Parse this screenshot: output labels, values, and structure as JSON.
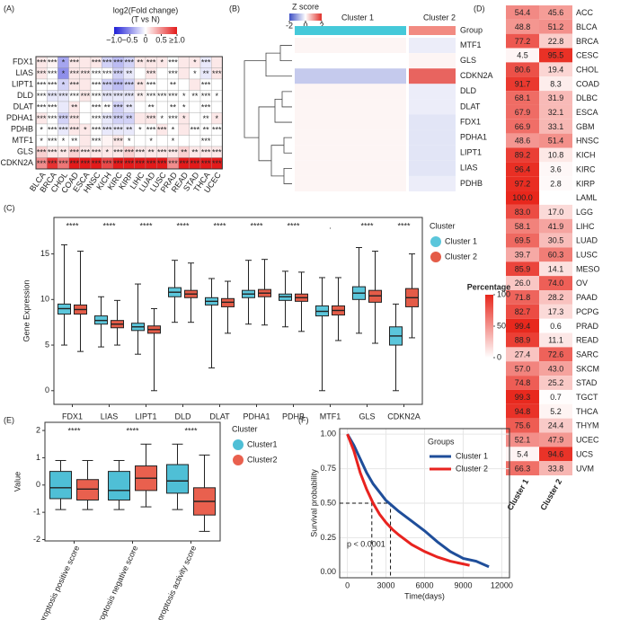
{
  "chart_data": [
    {
      "type": "heatmap",
      "label": "(A)",
      "title": "log2(Fold change)",
      "subtitle": "(T vs N)",
      "clim": [
        -1,
        1
      ],
      "colors": [
        "#1f1fd6",
        "#ffffff",
        "#e31a1a"
      ],
      "colorbar_ticks": [
        {
          "value": -1,
          "label": "−1.0"
        },
        {
          "value": -0.5,
          "label": "−0.5"
        },
        0,
        0.5,
        {
          "value": 1,
          "label": "≥1.0"
        }
      ],
      "rows": [
        "FDX1",
        "LIAS",
        "LIPT1",
        "DLD",
        "DLAT",
        "PDHA1",
        "PDHB",
        "MTF1",
        "GLS",
        "CDKN2A"
      ],
      "columns": [
        "BLCA",
        "BRCA",
        "CHOL",
        "COAD",
        "ESCA",
        "HNSC",
        "KICH",
        "KIRC",
        "KIRP",
        "LIHC",
        "LUAD",
        "LUSC",
        "PRAD",
        "READ",
        "STAD",
        "THCA",
        "UCEC"
      ],
      "values": [
        [
          0.1,
          0.05,
          -0.4,
          0.1,
          0.1,
          0.1,
          -0.2,
          -0.3,
          -0.2,
          0.1,
          0.1,
          0.1,
          0,
          0.1,
          0.1,
          -0.1,
          0.1
        ],
        [
          0.1,
          0,
          -0.5,
          0.1,
          0.1,
          0,
          0,
          -0.2,
          -0.1,
          0,
          0.1,
          0,
          0,
          0.1,
          0,
          -0.1,
          0.1
        ],
        [
          0,
          0,
          -0.2,
          0.1,
          0.1,
          0,
          -0.2,
          -0.3,
          -0.2,
          0.1,
          0,
          0,
          0,
          0,
          0.1,
          0,
          0
        ],
        [
          0,
          -0.1,
          -0.1,
          0,
          0.1,
          0,
          -0.1,
          -0.1,
          -0.1,
          0.05,
          0,
          0,
          0,
          0,
          0,
          0,
          0
        ],
        [
          0,
          0,
          -0.1,
          0.1,
          0,
          0,
          0,
          -0.2,
          -0.1,
          0,
          0,
          0,
          0,
          0,
          0,
          0,
          0
        ],
        [
          0.1,
          0,
          -0.2,
          0.1,
          0,
          0,
          -0.1,
          -0.2,
          -0.2,
          0.1,
          0.1,
          0,
          0,
          0.1,
          0,
          0,
          0.1
        ],
        [
          0,
          0,
          -0.1,
          0.1,
          0.1,
          0,
          -0.1,
          -0.1,
          -0.1,
          0,
          0,
          0.1,
          0,
          0.1,
          0,
          0,
          0
        ],
        [
          0,
          0,
          0,
          0,
          0.1,
          0,
          0.05,
          0.1,
          0,
          0,
          0,
          0,
          0,
          0,
          0,
          0,
          0
        ],
        [
          0.2,
          0.1,
          0.1,
          0.2,
          0.1,
          0.1,
          0.1,
          0.1,
          0.2,
          0.1,
          0.1,
          0.1,
          0.1,
          0.2,
          0.1,
          0.1,
          0.1
        ],
        [
          0.5,
          0.9,
          0.6,
          1.0,
          1.0,
          1.0,
          0.8,
          1.0,
          1.0,
          1.0,
          1.0,
          1.0,
          0.5,
          1.0,
          1.0,
          1.0,
          1.0
        ]
      ],
      "labels": [
        [
          "***",
          "***",
          "*",
          "***",
          null,
          "***",
          "***",
          "***",
          "***",
          "**",
          "***",
          "*",
          "***",
          null,
          "*",
          "***",
          null
        ],
        [
          "***",
          "***",
          "*",
          "***",
          "***",
          "***",
          "***",
          "***",
          "**",
          null,
          "***",
          null,
          "***",
          null,
          "*",
          "**",
          "***"
        ],
        [
          "***",
          "***",
          "*",
          "***",
          null,
          "***",
          "***",
          "***",
          "***",
          "**",
          "***",
          null,
          "**",
          null,
          null,
          "***",
          null
        ],
        [
          "***",
          "***",
          "***",
          "***",
          "***",
          "***",
          "***",
          "***",
          "***",
          "**",
          "***",
          "***",
          "***",
          "*",
          "**",
          "***",
          "*"
        ],
        [
          "***",
          "***",
          null,
          "**",
          null,
          "***",
          "**",
          "***",
          "**",
          null,
          "**",
          null,
          "**",
          "*",
          null,
          "***",
          null
        ],
        [
          "***",
          "***",
          "***",
          "***",
          null,
          "***",
          "***",
          "***",
          "**",
          null,
          "***",
          "*",
          "***",
          "*",
          null,
          "**",
          "*"
        ],
        [
          "*",
          "***",
          "***",
          "***",
          "*",
          "***",
          "***",
          "***",
          "**",
          "*",
          "***",
          "***",
          "*",
          null,
          "***",
          "**",
          "***"
        ],
        [
          "*",
          "***",
          "*",
          "**",
          null,
          "***",
          null,
          "***",
          "*",
          null,
          "*",
          null,
          "*",
          null,
          null,
          "***",
          null
        ],
        [
          "***",
          "***",
          "**",
          "***",
          "***",
          "***",
          "*",
          "***",
          "***",
          "***",
          "**",
          "***",
          "***",
          "**",
          "**",
          "***",
          "***"
        ],
        [
          "***",
          "***",
          "***",
          "***",
          "***",
          "***",
          "***",
          "***",
          "***",
          "***",
          "***",
          "***",
          "***",
          "***",
          "***",
          "***",
          "***"
        ]
      ]
    },
    {
      "type": "heatmap",
      "label": "(B)",
      "title": "Z score",
      "clim": [
        -2,
        2
      ],
      "colors": [
        "#3d4fc4",
        "#ffffff",
        "#e0302a"
      ],
      "colorbar_ticks": [
        -2,
        0,
        2
      ],
      "group_label": "Group",
      "groups": [
        {
          "name": "Cluster 1",
          "color": "#45c9d9"
        },
        {
          "name": "Cluster 2",
          "color": "#f28b82"
        }
      ],
      "rows": [
        "MTF1",
        "GLS",
        "CDKN2A",
        "DLD",
        "DLAT",
        "FDX1",
        "PDHA1",
        "LIPT1",
        "LIAS",
        "PDHB"
      ],
      "values": [
        [
          0.1,
          -0.2
        ],
        [
          0,
          0.1
        ],
        [
          -0.6,
          1.5
        ],
        [
          0.1,
          -0.2
        ],
        [
          0.1,
          -0.2
        ],
        [
          0.1,
          -0.3
        ],
        [
          0.1,
          -0.3
        ],
        [
          0.1,
          -0.3
        ],
        [
          0.1,
          -0.3
        ],
        [
          0.1,
          -0.2
        ]
      ]
    },
    {
      "type": "box",
      "label": "(C)",
      "y_label": "Gene Expression",
      "legend_title": "Cluster",
      "categories": [
        "FDX1",
        "LIAS",
        "LIPT1",
        "DLD",
        "DLAT",
        "PDHA1",
        "PDHB",
        "MTF1",
        "GLS",
        "CDKN2A"
      ],
      "annotations": [
        "****",
        "****",
        "****",
        "****",
        "****",
        "****",
        "****",
        ".",
        "****",
        "****"
      ],
      "ylim": [
        -1.5,
        19
      ],
      "yticks": [
        0,
        5,
        10,
        15
      ],
      "series": [
        {
          "name": "Cluster 1",
          "color": "#5bc6db",
          "values": [
            [
              5,
              8.4,
              9,
              9.5,
              16
            ],
            [
              4.8,
              7.3,
              7.7,
              8.2,
              10.3
            ],
            [
              4,
              6.6,
              7,
              7.4,
              11.7
            ],
            [
              7.5,
              10.3,
              10.8,
              11.3,
              14.3
            ],
            [
              2.5,
              9.4,
              9.8,
              10.2,
              12.3
            ],
            [
              7.3,
              10.2,
              10.6,
              11,
              14.3
            ],
            [
              7,
              9.9,
              10.3,
              10.6,
              13.1
            ],
            [
              0,
              8.2,
              8.7,
              9.3,
              12.4
            ],
            [
              6.3,
              10,
              10.7,
              11.4,
              15.7
            ],
            [
              0,
              5,
              6,
              7,
              9.5
            ]
          ]
        },
        {
          "name": "Cluster 2",
          "color": "#e45c48",
          "values": [
            [
              4.3,
              8.4,
              8.9,
              9.4,
              15.3
            ],
            [
              5,
              6.9,
              7.3,
              7.7,
              9.9
            ],
            [
              0,
              6.3,
              6.7,
              7.1,
              9
            ],
            [
              7.5,
              10.2,
              10.6,
              11,
              14
            ],
            [
              6.3,
              9.2,
              9.7,
              10.1,
              12
            ],
            [
              7.2,
              10.3,
              10.7,
              11.1,
              14.4
            ],
            [
              6.5,
              9.8,
              10.2,
              10.6,
              13
            ],
            [
              5.5,
              8.3,
              8.8,
              9.3,
              12.4
            ],
            [
              5.2,
              9.7,
              10.4,
              11,
              15.3
            ],
            [
              5.8,
              9.2,
              10.2,
              11.2,
              15
            ]
          ]
        }
      ]
    },
    {
      "type": "heatmap",
      "label": "(D)",
      "title": "Percentage",
      "clim": [
        0,
        100
      ],
      "colors": [
        "#ffffff",
        "#e8271c"
      ],
      "colorbar_ticks": [
        0,
        50,
        100
      ],
      "rows": [
        "ACC",
        "BLCA",
        "BRCA",
        "CESC",
        "CHOL",
        "COAD",
        "DLBC",
        "ESCA",
        "GBM",
        "HNSC",
        "KICH",
        "KIRC",
        "KIRP",
        "LAML",
        "LGG",
        "LIHC",
        "LUAD",
        "LUSC",
        "MESO",
        "OV",
        "PAAD",
        "PCPG",
        "PRAD",
        "READ",
        "SARC",
        "SKCM",
        "STAD",
        "TGCT",
        "THCA",
        "THYM",
        "UCEC",
        "UCS",
        "UVM"
      ],
      "series": [
        {
          "name": "Cluster 1",
          "values": [
            54.4,
            48.8,
            77.2,
            4.5,
            80.6,
            91.7,
            68.1,
            67.9,
            66.9,
            48.6,
            89.2,
            96.4,
            97.2,
            100,
            83,
            58.1,
            69.5,
            39.7,
            85.9,
            26,
            71.8,
            82.7,
            99.4,
            88.9,
            27.4,
            57,
            74.8,
            99.3,
            94.8,
            75.6,
            52.1,
            5.4,
            66.3
          ],
          "value_labels": [
            "54.4",
            "48.8",
            "77.2",
            "4.5",
            "80.6",
            "91.7",
            "68.1",
            "67.9",
            "66.9",
            "48.6",
            "89.2",
            "96.4",
            "97.2",
            "100.0",
            "83.0",
            "58.1",
            "69.5",
            "39.7",
            "85.9",
            "26.0",
            "71.8",
            "82.7",
            "99.4",
            "88.9",
            "27.4",
            "57.0",
            "74.8",
            "99.3",
            "94.8",
            "75.6",
            "52.1",
            "5.4",
            "66.3"
          ]
        },
        {
          "name": "Cluster 2",
          "values": [
            45.6,
            51.2,
            22.8,
            95.5,
            19.4,
            8.3,
            31.9,
            32.1,
            33.1,
            51.4,
            10.8,
            3.6,
            2.8,
            0,
            17,
            41.9,
            30.5,
            60.3,
            14.1,
            74,
            28.2,
            17.3,
            0.6,
            11.1,
            72.6,
            43,
            25.2,
            0.7,
            5.2,
            24.4,
            47.9,
            94.6,
            33.8
          ],
          "value_labels": [
            "45.6",
            "51.2",
            "22.8",
            "95.5",
            "19.4",
            "8.3",
            "31.9",
            "32.1",
            "33.1",
            "51.4",
            "10.8",
            "3.6",
            "2.8",
            null,
            "17.0",
            "41.9",
            "30.5",
            "60.3",
            "14.1",
            "74.0",
            "28.2",
            "17.3",
            "0.6",
            "11.1",
            "72.6",
            "43.0",
            "25.2",
            "0.7",
            "5.2",
            "24.4",
            "47.9",
            "94.6",
            "33.8"
          ]
        }
      ]
    },
    {
      "type": "box",
      "label": "(E)",
      "y_label": "Value",
      "legend_title": "Cluster",
      "categories": [
        "Cuproptosis positive score",
        "Cuproptosis negative score",
        "Cuproptosis activity score"
      ],
      "annotations": [
        "****",
        "****",
        "****"
      ],
      "ylim": [
        -2.05,
        2.3
      ],
      "yticks": [
        -2,
        -1,
        0,
        1,
        2
      ],
      "series": [
        {
          "name": "Cluster1",
          "color": "#4fbfd6",
          "values": [
            [
              -0.9,
              -0.5,
              -0.1,
              0.5,
              0.9
            ],
            [
              -0.9,
              -0.55,
              -0.2,
              0.5,
              0.9
            ],
            [
              -0.9,
              -0.3,
              0.15,
              0.75,
              1.5
            ]
          ]
        },
        {
          "name": "Cluster2",
          "color": "#e9604e",
          "values": [
            [
              -0.9,
              -0.55,
              -0.15,
              0.2,
              0.9
            ],
            [
              -0.8,
              -0.2,
              0.25,
              0.7,
              1.5
            ],
            [
              -1.7,
              -1.1,
              -0.6,
              -0.1,
              1.1
            ]
          ]
        }
      ]
    },
    {
      "type": "line",
      "label": "(F)",
      "x_label": "Time(days)",
      "y_label": "Survival probability",
      "legend_title": "Groups",
      "annotation": "p < 0.0001",
      "grid": true,
      "xlim": [
        -600,
        12600
      ],
      "xticks": [
        0,
        3000,
        6000,
        9000,
        12000
      ],
      "ylim": [
        -0.04,
        1.04
      ],
      "yticks": [
        {
          "value": 0,
          "label": "0.00"
        },
        0.25,
        {
          "value": 0.5,
          "label": "0.50"
        },
        0.75,
        {
          "value": 1,
          "label": "1.00"
        }
      ],
      "median_lines": [
        {
          "x": 1900,
          "y": 0.5
        },
        {
          "x": 3350,
          "y": 0.5
        }
      ],
      "series": [
        {
          "name": "Cluster 1",
          "color": "#1f4e9a",
          "x": [
            0,
            500,
            1000,
            1500,
            2000,
            2500,
            3000,
            3500,
            4000,
            5000,
            6000,
            7000,
            8000,
            9000,
            10000,
            11000
          ],
          "values": [
            1,
            0.92,
            0.82,
            0.72,
            0.64,
            0.58,
            0.52,
            0.48,
            0.44,
            0.37,
            0.3,
            0.22,
            0.15,
            0.1,
            0.08,
            0.04
          ]
        },
        {
          "name": "Cluster 2",
          "color": "#e8231f",
          "x": [
            0,
            500,
            1000,
            1500,
            2000,
            2500,
            3000,
            3500,
            4000,
            5000,
            6000,
            7000,
            8000,
            9000,
            9500
          ],
          "values": [
            1,
            0.88,
            0.72,
            0.6,
            0.5,
            0.42,
            0.36,
            0.31,
            0.27,
            0.2,
            0.15,
            0.11,
            0.08,
            0.06,
            0.05
          ]
        }
      ]
    }
  ]
}
